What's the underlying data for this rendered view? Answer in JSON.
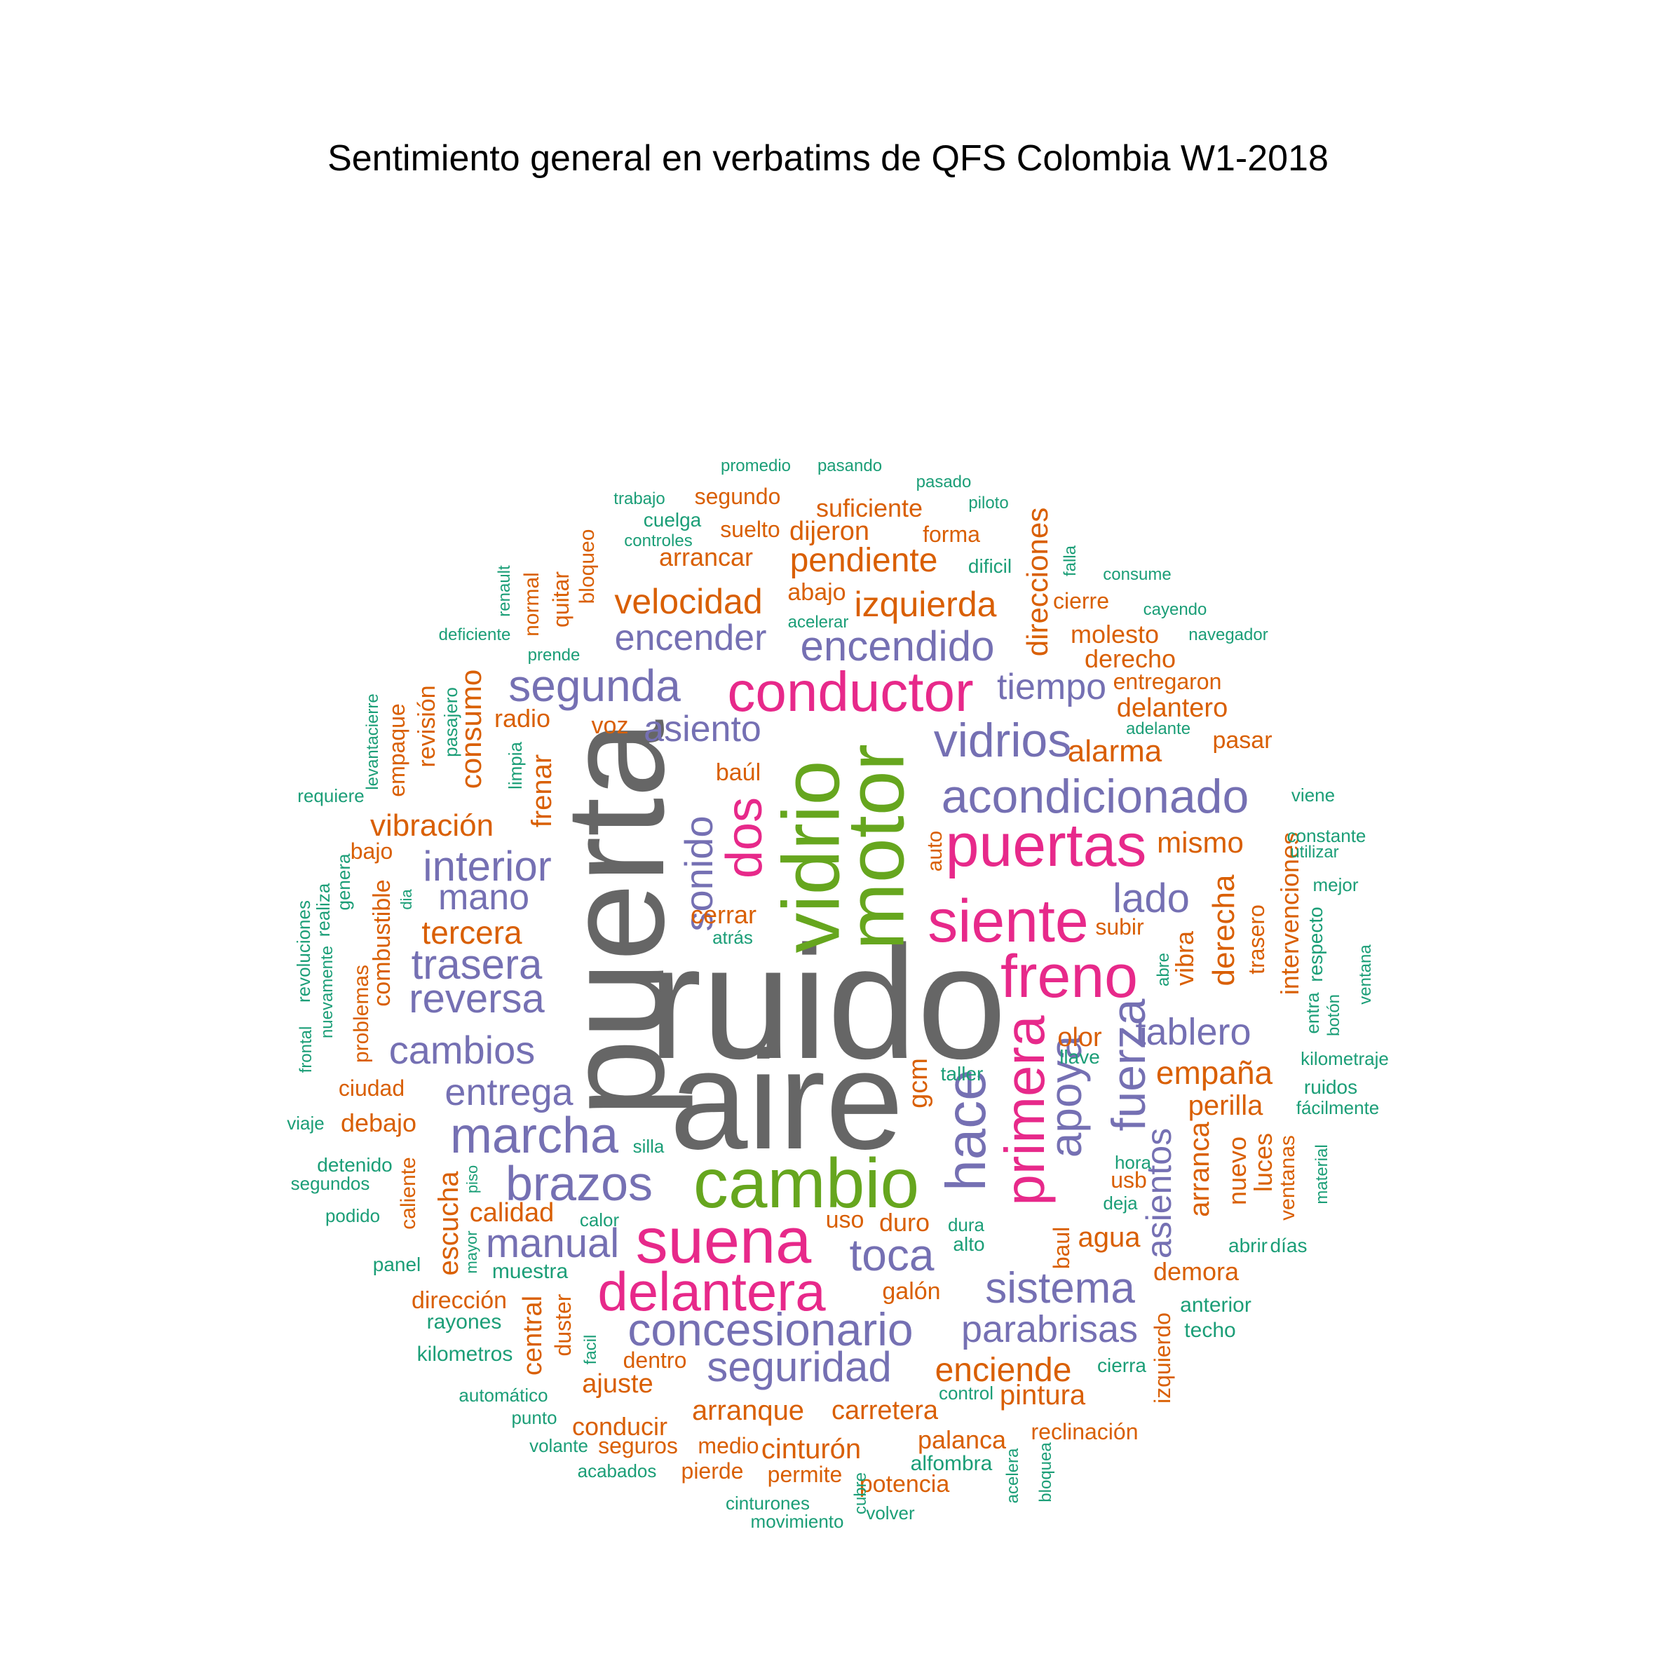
{
  "title": "Sentimiento general en verbatims de QFS Colombia W1-2018",
  "colors": {
    "gray": "#666666",
    "green": "#66a61e",
    "pink": "#e7298a",
    "purple": "#7570b3",
    "orange": "#d95f02",
    "teal": "#1b9e77"
  },
  "words": [
    {
      "text": "ruido",
      "c": "gray"
    },
    {
      "text": "puerta",
      "c": "gray"
    },
    {
      "text": "aire",
      "c": "gray"
    },
    {
      "text": "vidrio",
      "c": "green"
    },
    {
      "text": "motor",
      "c": "green"
    },
    {
      "text": "cambio",
      "c": "green"
    },
    {
      "text": "suena",
      "c": "pink"
    },
    {
      "text": "puertas",
      "c": "pink"
    },
    {
      "text": "conductor",
      "c": "pink"
    },
    {
      "text": "siente",
      "c": "pink"
    },
    {
      "text": "freno",
      "c": "pink"
    },
    {
      "text": "primera",
      "c": "pink"
    },
    {
      "text": "delantera",
      "c": "pink"
    },
    {
      "text": "dos",
      "c": "pink"
    },
    {
      "text": "acondicionado",
      "c": "purple"
    },
    {
      "text": "segunda",
      "c": "purple"
    },
    {
      "text": "encendido",
      "c": "purple"
    },
    {
      "text": "encender",
      "c": "purple"
    },
    {
      "text": "vidrios",
      "c": "purple"
    },
    {
      "text": "asiento",
      "c": "purple"
    },
    {
      "text": "tiempo",
      "c": "purple"
    },
    {
      "text": "interior",
      "c": "purple"
    },
    {
      "text": "mano",
      "c": "purple"
    },
    {
      "text": "trasera",
      "c": "purple"
    },
    {
      "text": "reversa",
      "c": "purple"
    },
    {
      "text": "cambios",
      "c": "purple"
    },
    {
      "text": "entrega",
      "c": "purple"
    },
    {
      "text": "marcha",
      "c": "purple"
    },
    {
      "text": "brazos",
      "c": "purple"
    },
    {
      "text": "manual",
      "c": "purple"
    },
    {
      "text": "concesionario",
      "c": "purple"
    },
    {
      "text": "seguridad",
      "c": "purple"
    },
    {
      "text": "sistema",
      "c": "purple"
    },
    {
      "text": "parabrisas",
      "c": "purple"
    },
    {
      "text": "toca",
      "c": "purple"
    },
    {
      "text": "lado",
      "c": "purple"
    },
    {
      "text": "tablero",
      "c": "purple"
    },
    {
      "text": "fuerza",
      "c": "purple"
    },
    {
      "text": "apoya",
      "c": "purple"
    },
    {
      "text": "hace",
      "c": "purple"
    },
    {
      "text": "asientos",
      "c": "purple"
    },
    {
      "text": "sonido",
      "c": "purple"
    },
    {
      "text": "velocidad",
      "c": "orange"
    },
    {
      "text": "pendiente",
      "c": "orange"
    },
    {
      "text": "izquierda",
      "c": "orange"
    },
    {
      "text": "arrancar",
      "c": "orange"
    },
    {
      "text": "segundo",
      "c": "orange"
    },
    {
      "text": "suelto",
      "c": "orange"
    },
    {
      "text": "dijeron",
      "c": "orange"
    },
    {
      "text": "forma",
      "c": "orange"
    },
    {
      "text": "suficiente",
      "c": "orange"
    },
    {
      "text": "abajo",
      "c": "orange"
    },
    {
      "text": "direcciones",
      "c": "orange"
    },
    {
      "text": "molesto",
      "c": "orange"
    },
    {
      "text": "derecho",
      "c": "orange"
    },
    {
      "text": "cierre",
      "c": "orange"
    },
    {
      "text": "entregaron",
      "c": "orange"
    },
    {
      "text": "delantero",
      "c": "orange"
    },
    {
      "text": "pasar",
      "c": "orange"
    },
    {
      "text": "alarma",
      "c": "orange"
    },
    {
      "text": "mismo",
      "c": "orange"
    },
    {
      "text": "baúl",
      "c": "orange"
    },
    {
      "text": "vibración",
      "c": "orange"
    },
    {
      "text": "bajo",
      "c": "orange"
    },
    {
      "text": "tercera",
      "c": "orange"
    },
    {
      "text": "cerrar",
      "c": "orange"
    },
    {
      "text": "voz",
      "c": "orange"
    },
    {
      "text": "radio",
      "c": "orange"
    },
    {
      "text": "frenar",
      "c": "orange"
    },
    {
      "text": "consumo",
      "c": "orange"
    },
    {
      "text": "revisión",
      "c": "orange"
    },
    {
      "text": "empaque",
      "c": "orange"
    },
    {
      "text": "combustible",
      "c": "orange"
    },
    {
      "text": "problemas",
      "c": "orange"
    },
    {
      "text": "ciudad",
      "c": "orange"
    },
    {
      "text": "debajo",
      "c": "orange"
    },
    {
      "text": "empaña",
      "c": "orange"
    },
    {
      "text": "perilla",
      "c": "orange"
    },
    {
      "text": "olor",
      "c": "orange"
    },
    {
      "text": "derecha",
      "c": "orange"
    },
    {
      "text": "vibra",
      "c": "orange"
    },
    {
      "text": "subir",
      "c": "orange"
    },
    {
      "text": "trasero",
      "c": "orange"
    },
    {
      "text": "intervenciones",
      "c": "orange"
    },
    {
      "text": "auto",
      "c": "orange"
    },
    {
      "text": "gcm",
      "c": "orange"
    },
    {
      "text": "usb",
      "c": "orange"
    },
    {
      "text": "agua",
      "c": "orange"
    },
    {
      "text": "demora",
      "c": "orange"
    },
    {
      "text": "nuevo",
      "c": "orange"
    },
    {
      "text": "luces",
      "c": "orange"
    },
    {
      "text": "arranca",
      "c": "orange"
    },
    {
      "text": "ventanas",
      "c": "orange"
    },
    {
      "text": "baul",
      "c": "orange"
    },
    {
      "text": "calidad",
      "c": "orange"
    },
    {
      "text": "uso",
      "c": "orange"
    },
    {
      "text": "duro",
      "c": "orange"
    },
    {
      "text": "escucha",
      "c": "orange"
    },
    {
      "text": "caliente",
      "c": "orange"
    },
    {
      "text": "galón",
      "c": "orange"
    },
    {
      "text": "dirección",
      "c": "orange"
    },
    {
      "text": "central",
      "c": "orange"
    },
    {
      "text": "duster",
      "c": "orange"
    },
    {
      "text": "ajuste",
      "c": "orange"
    },
    {
      "text": "dentro",
      "c": "orange"
    },
    {
      "text": "enciende",
      "c": "orange"
    },
    {
      "text": "pintura",
      "c": "orange"
    },
    {
      "text": "arranque",
      "c": "orange"
    },
    {
      "text": "carretera",
      "c": "orange"
    },
    {
      "text": "conducir",
      "c": "orange"
    },
    {
      "text": "seguros",
      "c": "orange"
    },
    {
      "text": "medio",
      "c": "orange"
    },
    {
      "text": "cinturón",
      "c": "orange"
    },
    {
      "text": "palanca",
      "c": "orange"
    },
    {
      "text": "reclinación",
      "c": "orange"
    },
    {
      "text": "izquierdo",
      "c": "orange"
    },
    {
      "text": "pierde",
      "c": "orange"
    },
    {
      "text": "permite",
      "c": "orange"
    },
    {
      "text": "potencia",
      "c": "orange"
    },
    {
      "text": "quitar",
      "c": "orange"
    },
    {
      "text": "normal",
      "c": "orange"
    },
    {
      "text": "bloqueo",
      "c": "orange"
    },
    {
      "text": "promedio",
      "c": "teal"
    },
    {
      "text": "pasando",
      "c": "teal"
    },
    {
      "text": "pasado",
      "c": "teal"
    },
    {
      "text": "trabajo",
      "c": "teal"
    },
    {
      "text": "piloto",
      "c": "teal"
    },
    {
      "text": "cuelga",
      "c": "teal"
    },
    {
      "text": "controles",
      "c": "teal"
    },
    {
      "text": "dificil",
      "c": "teal"
    },
    {
      "text": "falla",
      "c": "teal"
    },
    {
      "text": "consume",
      "c": "teal"
    },
    {
      "text": "cayendo",
      "c": "teal"
    },
    {
      "text": "acelerar",
      "c": "teal"
    },
    {
      "text": "navegador",
      "c": "teal"
    },
    {
      "text": "deficiente",
      "c": "teal"
    },
    {
      "text": "prende",
      "c": "teal"
    },
    {
      "text": "renault",
      "c": "teal"
    },
    {
      "text": "adelante",
      "c": "teal"
    },
    {
      "text": "levantacierre",
      "c": "teal"
    },
    {
      "text": "pasajero",
      "c": "teal"
    },
    {
      "text": "limpia",
      "c": "teal"
    },
    {
      "text": "requiere",
      "c": "teal"
    },
    {
      "text": "viene",
      "c": "teal"
    },
    {
      "text": "constante",
      "c": "teal"
    },
    {
      "text": "utilizar",
      "c": "teal"
    },
    {
      "text": "mejor",
      "c": "teal"
    },
    {
      "text": "dia",
      "c": "teal"
    },
    {
      "text": "atrás",
      "c": "teal"
    },
    {
      "text": "genera",
      "c": "teal"
    },
    {
      "text": "realiza",
      "c": "teal"
    },
    {
      "text": "revoluciones",
      "c": "teal"
    },
    {
      "text": "nuevamente",
      "c": "teal"
    },
    {
      "text": "frontal",
      "c": "teal"
    },
    {
      "text": "respecto",
      "c": "teal"
    },
    {
      "text": "ventana",
      "c": "teal"
    },
    {
      "text": "botón",
      "c": "teal"
    },
    {
      "text": "entra",
      "c": "teal"
    },
    {
      "text": "abre",
      "c": "teal"
    },
    {
      "text": "kilometraje",
      "c": "teal"
    },
    {
      "text": "llave",
      "c": "teal"
    },
    {
      "text": "ruidos",
      "c": "teal"
    },
    {
      "text": "fácilmente",
      "c": "teal"
    },
    {
      "text": "taller",
      "c": "teal"
    },
    {
      "text": "viaje",
      "c": "teal"
    },
    {
      "text": "silla",
      "c": "teal"
    },
    {
      "text": "detenido",
      "c": "teal"
    },
    {
      "text": "segundos",
      "c": "teal"
    },
    {
      "text": "podido",
      "c": "teal"
    },
    {
      "text": "piso",
      "c": "teal"
    },
    {
      "text": "hora",
      "c": "teal"
    },
    {
      "text": "deja",
      "c": "teal"
    },
    {
      "text": "material",
      "c": "teal"
    },
    {
      "text": "calor",
      "c": "teal"
    },
    {
      "text": "panel",
      "c": "teal"
    },
    {
      "text": "mayor",
      "c": "teal"
    },
    {
      "text": "muestra",
      "c": "teal"
    },
    {
      "text": "dura",
      "c": "teal"
    },
    {
      "text": "alto",
      "c": "teal"
    },
    {
      "text": "abrir",
      "c": "teal"
    },
    {
      "text": "días",
      "c": "teal"
    },
    {
      "text": "anterior",
      "c": "teal"
    },
    {
      "text": "techo",
      "c": "teal"
    },
    {
      "text": "rayones",
      "c": "teal"
    },
    {
      "text": "kilometros",
      "c": "teal"
    },
    {
      "text": "facil",
      "c": "teal"
    },
    {
      "text": "cierra",
      "c": "teal"
    },
    {
      "text": "automático",
      "c": "teal"
    },
    {
      "text": "control",
      "c": "teal"
    },
    {
      "text": "punto",
      "c": "teal"
    },
    {
      "text": "volante",
      "c": "teal"
    },
    {
      "text": "acabados",
      "c": "teal"
    },
    {
      "text": "alfombra",
      "c": "teal"
    },
    {
      "text": "acelera",
      "c": "teal"
    },
    {
      "text": "bloquea",
      "c": "teal"
    },
    {
      "text": "cinturones",
      "c": "teal"
    },
    {
      "text": "movimiento",
      "c": "teal"
    },
    {
      "text": "cubre",
      "c": "teal"
    },
    {
      "text": "volver",
      "c": "teal"
    }
  ]
}
